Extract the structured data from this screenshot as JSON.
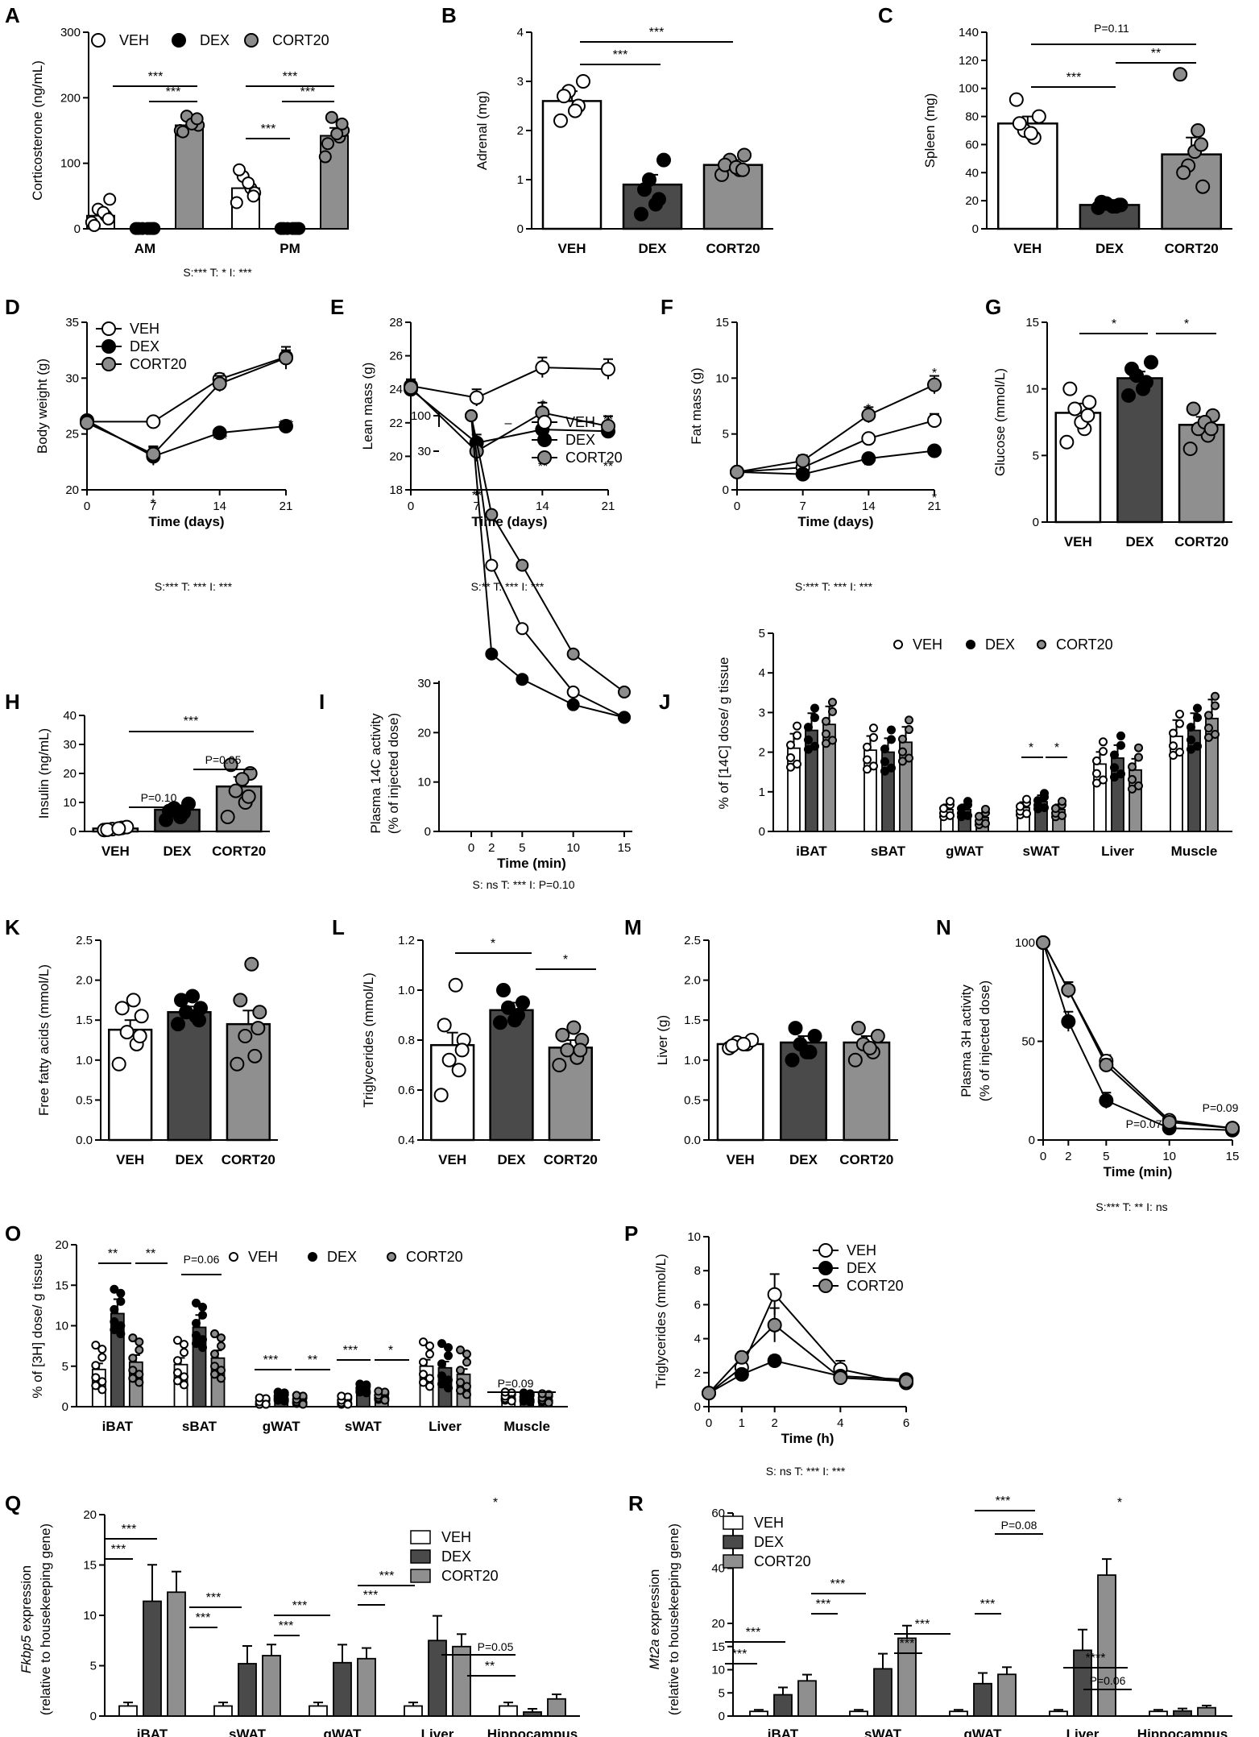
{
  "colors": {
    "VEH": "#ffffff",
    "DEX": "#4a4a4a",
    "CORT20": "#8f8f8f",
    "DEX_dot": "#000000",
    "CORT20_dot": "#8c8c8c",
    "VEH_dot": "#ffffff"
  },
  "chart_data": [
    {
      "id": "A",
      "type": "bar",
      "ylabel": "Corticosterone (ng/mL)",
      "ylim": [
        0,
        300
      ],
      "yticks": [
        0,
        100,
        200,
        300
      ],
      "categories": [
        "AM",
        "PM"
      ],
      "series": [
        {
          "name": "VEH",
          "values": [
            20,
            62
          ],
          "errors": [
            7,
            12
          ]
        },
        {
          "name": "DEX",
          "values": [
            1,
            1
          ],
          "errors": [
            0.5,
            0.5
          ]
        },
        {
          "name": "CORT20",
          "values": [
            158,
            142
          ],
          "errors": [
            7,
            12
          ]
        }
      ],
      "legend": [
        "VEH",
        "DEX",
        "CORT20"
      ],
      "sig": [
        {
          "text": "***"
        },
        {
          "text": "***"
        },
        {
          "text": "***"
        },
        {
          "text": "***"
        },
        {
          "text": "***"
        }
      ],
      "stats": "S:***      T: *      I: ***"
    },
    {
      "id": "B",
      "type": "bar",
      "ylabel": "Adrenal (mg)",
      "ylim": [
        0,
        4
      ],
      "yticks": [
        0,
        1,
        2,
        3,
        4
      ],
      "categories": [
        "VEH",
        "DEX",
        "CORT20"
      ],
      "values": [
        2.6,
        0.9,
        1.3
      ],
      "errors": [
        0.2,
        0.2,
        0.1
      ],
      "sig": [
        {
          "text": "***"
        },
        {
          "text": "***"
        }
      ]
    },
    {
      "id": "C",
      "type": "bar",
      "ylabel": "Spleen (mg)",
      "ylim": [
        0,
        140
      ],
      "yticks": [
        0,
        20,
        40,
        60,
        80,
        100,
        120,
        140
      ],
      "categories": [
        "VEH",
        "DEX",
        "CORT20"
      ],
      "values": [
        75,
        17,
        53
      ],
      "errors": [
        5,
        1,
        12
      ],
      "sig": [
        {
          "text": "P=0.11"
        },
        {
          "text": "***"
        },
        {
          "text": "**"
        }
      ]
    },
    {
      "id": "D",
      "type": "line",
      "ylabel": "Body weight (g)",
      "xlabel": "Time (days)",
      "ylim": [
        20,
        35
      ],
      "yticks": [
        20,
        25,
        30,
        35
      ],
      "x": [
        0,
        7,
        14,
        21
      ],
      "series": [
        {
          "name": "VEH",
          "values": [
            26.1,
            26.1,
            29.9,
            31.9
          ]
        },
        {
          "name": "DEX",
          "values": [
            26.2,
            23.0,
            25.1,
            25.7
          ]
        },
        {
          "name": "CORT20",
          "values": [
            26.0,
            23.2,
            29.5,
            31.8
          ]
        }
      ],
      "legend": [
        "VEH",
        "DEX",
        "CORT20"
      ],
      "annotations": [
        {
          "text": "*"
        },
        {
          "text": "***"
        },
        {
          "text": "***"
        }
      ],
      "stats": "S:***      T: ***      I: ***"
    },
    {
      "id": "E",
      "type": "line",
      "ylabel": "Lean mass (g)",
      "xlabel": "Time (days)",
      "ylim": [
        18,
        28
      ],
      "yticks": [
        18,
        20,
        22,
        24,
        26,
        28
      ],
      "x": [
        0,
        7,
        14,
        21
      ],
      "series": [
        {
          "name": "VEH",
          "values": [
            24.2,
            23.5,
            25.3,
            25.2
          ]
        },
        {
          "name": "DEX",
          "values": [
            24.0,
            20.8,
            21.6,
            21.5
          ]
        },
        {
          "name": "CORT20",
          "values": [
            24.1,
            20.3,
            22.6,
            21.8
          ]
        }
      ],
      "annotations": [
        {
          "text": "*"
        },
        {
          "text": "**"
        },
        {
          "text": "*"
        },
        {
          "text": "**"
        },
        {
          "text": "**"
        },
        {
          "text": "**"
        }
      ],
      "stats": "S:**      T: ***      I: ***"
    },
    {
      "id": "F",
      "type": "line",
      "ylabel": "Fat mass (g)",
      "xlabel": "Time (days)",
      "ylim": [
        0,
        15
      ],
      "yticks": [
        0,
        5,
        10,
        15
      ],
      "x": [
        0,
        7,
        14,
        21
      ],
      "series": [
        {
          "name": "VEH",
          "values": [
            1.6,
            2.0,
            4.6,
            6.2
          ]
        },
        {
          "name": "DEX",
          "values": [
            1.6,
            1.4,
            2.8,
            3.5
          ]
        },
        {
          "name": "CORT20",
          "values": [
            1.6,
            2.6,
            6.7,
            9.4
          ]
        }
      ],
      "annotations": [
        {
          "text": "*"
        },
        {
          "text": "**"
        },
        {
          "text": "*"
        },
        {
          "text": "*"
        }
      ],
      "stats": "S:***      T: ***      I: ***"
    },
    {
      "id": "G",
      "type": "bar",
      "ylabel": "Glucose (mmol/L)",
      "ylim": [
        0,
        15
      ],
      "yticks": [
        0,
        5,
        10,
        15
      ],
      "categories": [
        "VEH",
        "DEX",
        "CORT20"
      ],
      "values": [
        8.2,
        10.8,
        7.3
      ],
      "errors": [
        0.7,
        0.5,
        0.6
      ],
      "sig": [
        {
          "text": "*"
        },
        {
          "text": "*"
        }
      ]
    },
    {
      "id": "H",
      "type": "bar",
      "ylabel": "Insulin (ng/mL)",
      "ylim": [
        0,
        40
      ],
      "yticks": [
        0,
        10,
        20,
        30,
        40
      ],
      "categories": [
        "VEH",
        "DEX",
        "CORT20"
      ],
      "values": [
        1.0,
        7.5,
        15.5
      ],
      "errors": [
        0.3,
        1.5,
        3.3
      ],
      "sig": [
        {
          "text": "***"
        },
        {
          "text": "P=0.05"
        },
        {
          "text": "P=0.10"
        }
      ]
    },
    {
      "id": "I",
      "type": "line",
      "ylabel": "Plasma 14C activity (% of injected dose)",
      "xlabel": "Time (min)",
      "yticks": [
        0,
        10,
        20,
        30,
        100
      ],
      "x": [
        0,
        2,
        5,
        10,
        15
      ],
      "series": [
        {
          "name": "VEH",
          "values": [
            100,
            21,
            16,
            11,
            9
          ]
        },
        {
          "name": "DEX",
          "values": [
            100,
            14,
            12,
            10,
            9
          ]
        },
        {
          "name": "CORT20",
          "values": [
            100,
            25,
            21,
            14,
            11
          ]
        }
      ],
      "legend": [
        "VEH",
        "DEX",
        "CORT20"
      ],
      "annotations": [
        {
          "text": "–"
        }
      ],
      "stats": "S: ns      T: ***      I: P=0.10"
    },
    {
      "id": "J",
      "type": "bar",
      "ylabel": "% of [14C] dose/ g tissue",
      "ylim": [
        0,
        5
      ],
      "yticks": [
        0,
        1,
        2,
        3,
        4,
        5
      ],
      "categories": [
        "iBAT",
        "sBAT",
        "gWAT",
        "sWAT",
        "Liver",
        "Muscle"
      ],
      "series": [
        {
          "name": "VEH",
          "values": [
            2.1,
            2.05,
            0.55,
            0.6,
            1.7,
            2.4
          ]
        },
        {
          "name": "DEX",
          "values": [
            2.55,
            2.0,
            0.55,
            0.75,
            1.85,
            2.55
          ]
        },
        {
          "name": "CORT20",
          "values": [
            2.7,
            2.25,
            0.35,
            0.55,
            1.55,
            2.85
          ]
        }
      ],
      "legend": [
        "VEH",
        "DEX",
        "CORT20"
      ],
      "sig": [
        {
          "text": "*"
        },
        {
          "text": "*"
        }
      ]
    },
    {
      "id": "K",
      "type": "bar",
      "ylabel": "Free fatty acids (mmol/L)",
      "ylim": [
        0,
        2.5
      ],
      "yticks": [
        "0.0",
        "0.5",
        "1.0",
        "1.5",
        "2.0",
        "2.5"
      ],
      "categories": [
        "VEH",
        "DEX",
        "CORT20"
      ],
      "values": [
        1.38,
        1.6,
        1.45
      ],
      "errors": [
        0.12,
        0.07,
        0.17
      ]
    },
    {
      "id": "L",
      "type": "bar",
      "ylabel": "Triglycerides (mmol/L)",
      "ylim": [
        0.4,
        1.2
      ],
      "yticks": [
        "0.4",
        "0.6",
        "0.8",
        "1.0",
        "1.2"
      ],
      "categories": [
        "VEH",
        "DEX",
        "CORT20"
      ],
      "values": [
        0.78,
        0.92,
        0.77
      ],
      "errors": [
        0.05,
        0.03,
        0.03
      ],
      "sig": [
        {
          "text": "*"
        },
        {
          "text": "*"
        }
      ]
    },
    {
      "id": "M",
      "type": "bar",
      "ylabel": "Liver (g)",
      "ylim": [
        0,
        2.5
      ],
      "yticks": [
        "0.0",
        "0.5",
        "1.0",
        "1.5",
        "2.0",
        "2.5"
      ],
      "categories": [
        "VEH",
        "DEX",
        "CORT20"
      ],
      "values": [
        1.2,
        1.22,
        1.22
      ],
      "errors": [
        0.04,
        0.08,
        0.08
      ]
    },
    {
      "id": "N",
      "type": "line",
      "ylabel": "Plasma 3H activity (% of injected dose)",
      "xlabel": "Time (min)",
      "ylim": [
        0,
        100
      ],
      "yticks": [
        0,
        50,
        100
      ],
      "x": [
        0,
        2,
        5,
        10,
        15
      ],
      "series": [
        {
          "name": "VEH",
          "values": [
            100,
            76,
            40,
            10,
            6
          ]
        },
        {
          "name": "DEX",
          "values": [
            100,
            60,
            20,
            6,
            5
          ]
        },
        {
          "name": "CORT20",
          "values": [
            100,
            76,
            38,
            9,
            6
          ]
        }
      ],
      "annotations": [
        {
          "text": "P=0.07"
        },
        {
          "text": "*"
        },
        {
          "text": "P=0.09"
        }
      ],
      "stats": "S:***      T: **      I: ns"
    },
    {
      "id": "O",
      "type": "bar",
      "ylabel": "% of [3H] dose/ g tissue",
      "ylim": [
        0,
        20
      ],
      "yticks": [
        0,
        5,
        10,
        15,
        20
      ],
      "categories": [
        "iBAT",
        "sBAT",
        "gWAT",
        "sWAT",
        "Liver",
        "Muscle"
      ],
      "series": [
        {
          "name": "VEH",
          "values": [
            4.6,
            5.2,
            0.5,
            0.7,
            5.0,
            1.2
          ]
        },
        {
          "name": "DEX",
          "values": [
            11.5,
            9.8,
            1.2,
            2.2,
            4.8,
            1.1
          ]
        },
        {
          "name": "CORT20",
          "values": [
            5.5,
            6.0,
            0.8,
            1.3,
            4.0,
            1.0
          ]
        }
      ],
      "legend": [
        "VEH",
        "DEX",
        "CORT20"
      ],
      "sig": [
        {
          "text": "**"
        },
        {
          "text": "**"
        },
        {
          "text": "P=0.06"
        },
        {
          "text": "***"
        },
        {
          "text": "**"
        },
        {
          "text": "***"
        },
        {
          "text": "*"
        },
        {
          "text": "P=0.09"
        }
      ]
    },
    {
      "id": "P",
      "type": "line",
      "ylabel": "Triglycerides (mmol/L)",
      "xlabel": "Time (h)",
      "ylim": [
        0,
        10
      ],
      "yticks": [
        0,
        2,
        4,
        6,
        8,
        10
      ],
      "x": [
        0,
        1,
        2,
        4,
        6
      ],
      "series": [
        {
          "name": "VEH",
          "values": [
            0.8,
            2.3,
            6.6,
            2.2,
            1.4
          ]
        },
        {
          "name": "DEX",
          "values": [
            0.8,
            1.9,
            2.7,
            1.8,
            1.6
          ]
        },
        {
          "name": "CORT20",
          "values": [
            0.8,
            2.9,
            4.8,
            1.7,
            1.5
          ]
        }
      ],
      "legend": [
        "VEH",
        "DEX",
        "CORT20"
      ],
      "annotations": [
        {
          "text": "*"
        }
      ],
      "stats": "S: ns      T: ***      I: ***"
    },
    {
      "id": "Q",
      "type": "bar",
      "ylabel": "Fkbp5 expression (relative to housekeeping gene)",
      "ylabel_italic": "Fkbp5",
      "ylabel_rest": " expression",
      "ylabel2": "(relative to housekeeping gene)",
      "ylim": [
        0,
        20
      ],
      "yticks": [
        0,
        5,
        10,
        15,
        20
      ],
      "categories": [
        "iBAT",
        "sWAT",
        "gWAT",
        "Liver",
        "Hippocampus"
      ],
      "series": [
        {
          "name": "VEH",
          "values": [
            1.0,
            1.0,
            1.0,
            1.0,
            1.0
          ]
        },
        {
          "name": "DEX",
          "values": [
            11.4,
            5.2,
            5.3,
            7.5,
            0.4
          ]
        },
        {
          "name": "CORT20",
          "values": [
            12.3,
            6.0,
            5.7,
            6.9,
            1.7
          ]
        }
      ],
      "legend": [
        "VEH",
        "DEX",
        "CORT20"
      ],
      "sig": [
        {
          "text": "***"
        },
        {
          "text": "***"
        },
        {
          "text": "***"
        },
        {
          "text": "***"
        },
        {
          "text": "***"
        },
        {
          "text": "***"
        },
        {
          "text": "***"
        },
        {
          "text": "***"
        },
        {
          "text": "P=0.05"
        },
        {
          "text": "**"
        },
        {
          "text": "*"
        }
      ]
    },
    {
      "id": "R",
      "type": "bar",
      "ylabel": "Mt2a expression (relative to housekeeping gene)",
      "ylabel_italic": "Mt2a",
      "ylabel_rest": " expression",
      "ylabel2": "(relative to housekeeping gene)",
      "yticks": [
        0,
        5,
        10,
        15,
        20,
        40,
        60
      ],
      "categories": [
        "iBAT",
        "sWAT",
        "gWAT",
        "Liver",
        "Hippocampus"
      ],
      "series": [
        {
          "name": "VEH",
          "values": [
            1.0,
            1.0,
            1.0,
            1.0,
            1.0
          ]
        },
        {
          "name": "DEX",
          "values": [
            4.6,
            10.2,
            7.0,
            14.2,
            1.1
          ]
        },
        {
          "name": "CORT20",
          "values": [
            7.6,
            16.8,
            9.0,
            37.5,
            1.8
          ]
        }
      ],
      "legend": [
        "VEH",
        "DEX",
        "CORT20"
      ],
      "sig": [
        {
          "text": "***"
        },
        {
          "text": "***"
        },
        {
          "text": "***"
        },
        {
          "text": "***"
        },
        {
          "text": "***"
        },
        {
          "text": "***"
        },
        {
          "text": "***"
        },
        {
          "text": "***"
        },
        {
          "text": "P=0.08"
        },
        {
          "text": "****"
        },
        {
          "text": "P=0.06"
        },
        {
          "text": "*"
        }
      ]
    }
  ]
}
